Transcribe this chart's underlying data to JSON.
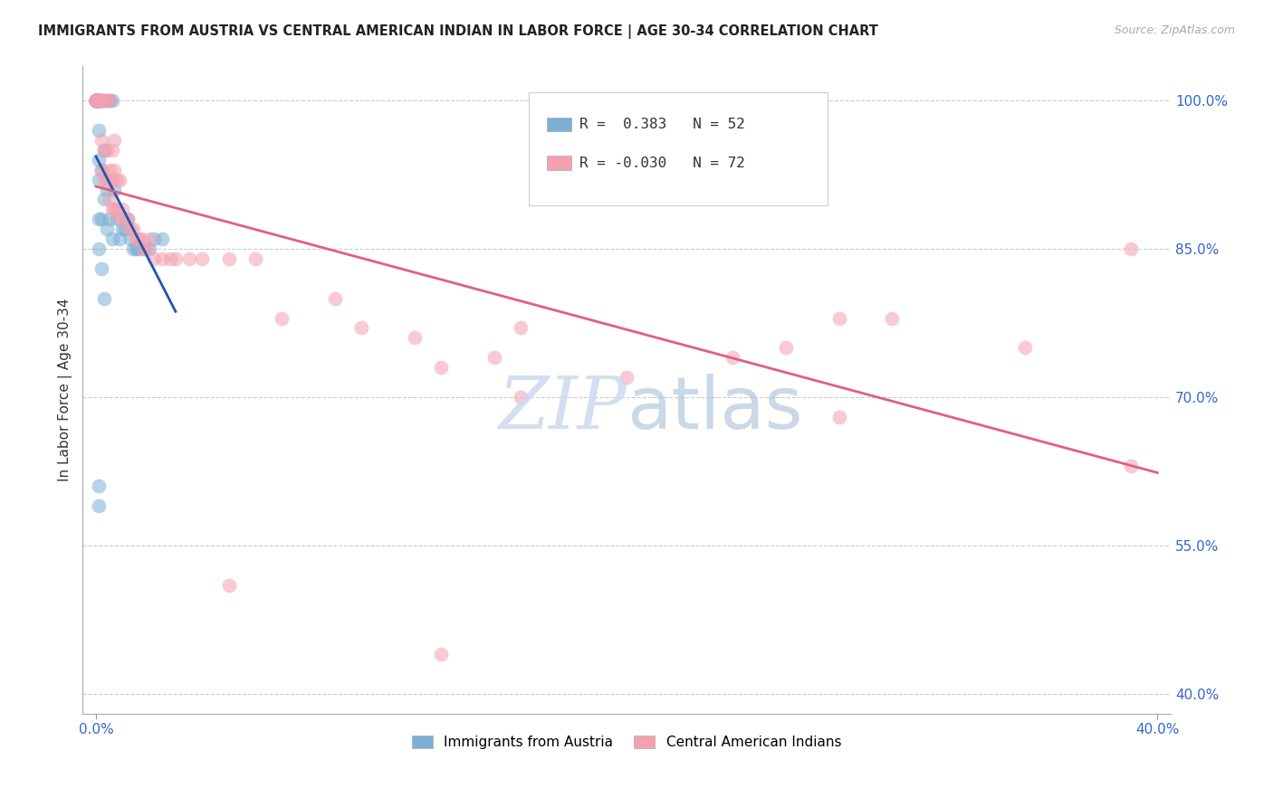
{
  "title": "IMMIGRANTS FROM AUSTRIA VS CENTRAL AMERICAN INDIAN IN LABOR FORCE | AGE 30-34 CORRELATION CHART",
  "source": "Source: ZipAtlas.com",
  "ylabel": "In Labor Force | Age 30-34",
  "xlim": [
    0.0,
    0.4
  ],
  "ylim": [
    0.38,
    1.035
  ],
  "yticks": [
    0.4,
    0.55,
    0.7,
    0.85,
    1.0
  ],
  "ytick_labels": [
    "40.0%",
    "55.0%",
    "70.0%",
    "85.0%",
    "100.0%"
  ],
  "xtick_labels": [
    "0.0%",
    "40.0%"
  ],
  "r_austria": 0.383,
  "n_austria": 52,
  "r_central": -0.03,
  "n_central": 72,
  "austria_color": "#7bafd4",
  "central_color": "#f4a0b0",
  "austria_line_color": "#2255aa",
  "central_line_color": "#e06080",
  "background_color": "#ffffff",
  "grid_color": "#cccccc",
  "austria_x": [
    0.0,
    0.0,
    0.0,
    0.0,
    0.0,
    0.0,
    0.0,
    0.0,
    0.0,
    0.0,
    0.0,
    0.0,
    0.001,
    0.001,
    0.001,
    0.001,
    0.001,
    0.001,
    0.001,
    0.001,
    0.002,
    0.002,
    0.002,
    0.002,
    0.003,
    0.003,
    0.003,
    0.004,
    0.004,
    0.004,
    0.005,
    0.005,
    0.006,
    0.006,
    0.007,
    0.008,
    0.009,
    0.01,
    0.011,
    0.012,
    0.013,
    0.014,
    0.015,
    0.016,
    0.018,
    0.02,
    0.022,
    0.025,
    0.001,
    0.001,
    0.002,
    0.003
  ],
  "austria_y": [
    1.0,
    1.0,
    1.0,
    1.0,
    1.0,
    1.0,
    1.0,
    1.0,
    1.0,
    1.0,
    1.0,
    1.0,
    1.0,
    1.0,
    1.0,
    0.97,
    0.94,
    0.92,
    0.88,
    0.85,
    1.0,
    1.0,
    0.93,
    0.88,
    1.0,
    0.95,
    0.9,
    1.0,
    0.91,
    0.87,
    1.0,
    0.88,
    1.0,
    0.86,
    0.91,
    0.88,
    0.86,
    0.87,
    0.87,
    0.88,
    0.86,
    0.85,
    0.85,
    0.85,
    0.85,
    0.85,
    0.86,
    0.86,
    0.61,
    0.59,
    0.83,
    0.8
  ],
  "central_x": [
    0.0,
    0.0,
    0.0,
    0.0,
    0.0,
    0.001,
    0.001,
    0.001,
    0.001,
    0.001,
    0.001,
    0.002,
    0.002,
    0.002,
    0.002,
    0.003,
    0.003,
    0.003,
    0.004,
    0.004,
    0.004,
    0.005,
    0.005,
    0.005,
    0.006,
    0.006,
    0.006,
    0.007,
    0.007,
    0.007,
    0.008,
    0.008,
    0.009,
    0.009,
    0.01,
    0.011,
    0.012,
    0.013,
    0.014,
    0.015,
    0.016,
    0.017,
    0.018,
    0.019,
    0.02,
    0.022,
    0.025,
    0.028,
    0.03,
    0.035,
    0.04,
    0.05,
    0.06,
    0.07,
    0.09,
    0.1,
    0.12,
    0.13,
    0.15,
    0.16,
    0.2,
    0.24,
    0.26,
    0.28,
    0.3,
    0.35,
    0.39,
    0.13,
    0.05,
    0.16,
    0.39,
    0.28
  ],
  "central_y": [
    1.0,
    1.0,
    1.0,
    1.0,
    1.0,
    1.0,
    1.0,
    1.0,
    1.0,
    1.0,
    1.0,
    1.0,
    1.0,
    0.96,
    0.93,
    1.0,
    0.95,
    0.92,
    1.0,
    0.95,
    0.92,
    1.0,
    0.93,
    0.9,
    0.95,
    0.92,
    0.89,
    0.96,
    0.93,
    0.89,
    0.92,
    0.89,
    0.92,
    0.88,
    0.89,
    0.88,
    0.88,
    0.87,
    0.87,
    0.86,
    0.86,
    0.86,
    0.85,
    0.85,
    0.86,
    0.84,
    0.84,
    0.84,
    0.84,
    0.84,
    0.84,
    0.84,
    0.84,
    0.78,
    0.8,
    0.77,
    0.76,
    0.73,
    0.74,
    0.77,
    0.72,
    0.74,
    0.75,
    0.78,
    0.78,
    0.75,
    0.63,
    0.44,
    0.51,
    0.7,
    0.85,
    0.68
  ]
}
